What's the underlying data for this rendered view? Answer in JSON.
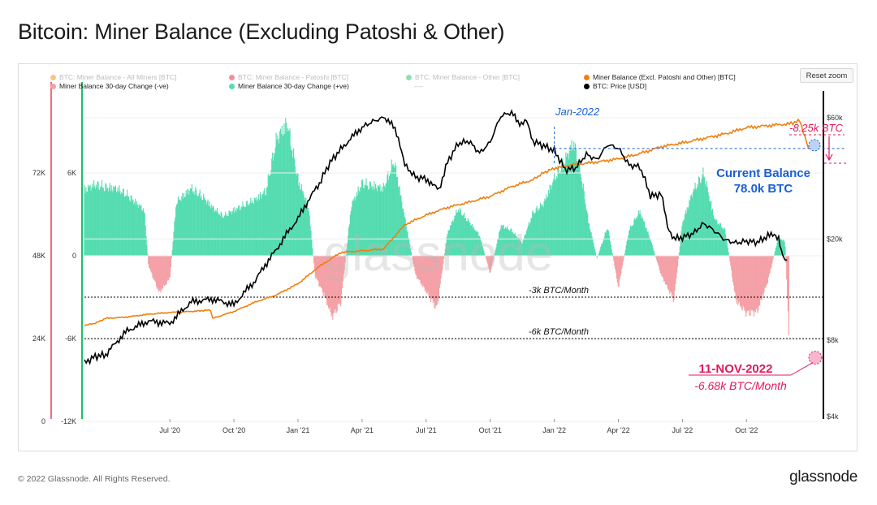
{
  "title": "Bitcoin: Miner Balance (Excluding Patoshi & Other)",
  "reset_zoom": "Reset zoom",
  "footer": {
    "copyright": "© 2022 Glassnode. All Rights Reserved.",
    "logo": "glassnode"
  },
  "watermark": "glassnode",
  "legend": [
    {
      "label": "BTC: Miner Balance - All Miners [BTC]",
      "color": "#f7931a",
      "enabled": false
    },
    {
      "label": "BTC: Miner Balance - Patoshi [BTC]",
      "color": "#e8334a",
      "enabled": false
    },
    {
      "label": "BTC: Miner Balance - Other [BTC]",
      "color": "#2ecc71",
      "enabled": false
    },
    {
      "label": "Miner Balance (Excl. Patoshi and Other) [BTC]",
      "color": "#f07f0f",
      "enabled": true
    },
    {
      "label": "Miner Balance 30-day Change (-ve)",
      "color": "#f4a0a6",
      "enabled": true
    },
    {
      "label": "Miner Balance 30-day Change (+ve)",
      "color": "#55dcb0",
      "enabled": true
    },
    {
      "label": "----",
      "color": "#cccccc",
      "enabled": false
    },
    {
      "label": "BTC: Price [USD]",
      "color": "#000000",
      "enabled": true
    }
  ],
  "colors": {
    "balance": "#f07f0f",
    "price": "#000000",
    "pos_change": "#55dcb0",
    "neg_change": "#f4a0a6",
    "annot_blue": "#1a5fd6",
    "annot_pink": "#e0195a",
    "left_green": "#19c16a",
    "left_red": "#ef6f7c"
  },
  "annotations": {
    "jan2022": "Jan-2022",
    "current_balance_l1": "Current Balance",
    "current_balance_l2": "78.0k BTC",
    "drop": "-8.25k BTC",
    "date": "11-NOV-2022",
    "rate": "-6.68k BTC/Month",
    "line3k": "-3k BTC/Month",
    "line6k": "-6k BTC/Month"
  },
  "chart_data": {
    "type": "line",
    "title": "Bitcoin: Miner Balance (Excluding Patoshi & Other)",
    "x_tick_labels": [
      "Jul '20",
      "Oct '20",
      "Jan '21",
      "Apr '21",
      "Jul '21",
      "Oct '21",
      "Jan '22",
      "Apr '22",
      "Jul '22",
      "Oct '22"
    ],
    "x_tick_months": [
      4,
      7,
      10,
      13,
      16,
      19,
      22,
      25,
      28,
      31
    ],
    "x_range_months": [
      0,
      34.6
    ],
    "x_origin": "2020-03-01",
    "left_axis_balance": {
      "ticks": [
        "72K",
        "48K",
        "24K",
        "0"
      ],
      "values": [
        72000,
        48000,
        24000,
        0
      ],
      "range": [
        0,
        96000
      ]
    },
    "left_axis_change": {
      "ticks": [
        "6K",
        "0",
        "-6K",
        "-12K"
      ],
      "values": [
        6000,
        0,
        -6000,
        -12000
      ],
      "range": [
        -12000,
        12000
      ]
    },
    "right_axis_price": {
      "ticks": [
        "$60k",
        "$20k",
        "$8k",
        "$4k"
      ],
      "values": [
        60000,
        20000,
        8000,
        4000
      ],
      "scale": "log"
    },
    "reference_lines": [
      {
        "value": -3000,
        "label": "-3k BTC/Month"
      },
      {
        "value": -6000,
        "label": "-6k BTC/Month"
      }
    ],
    "series": [
      {
        "name": "Miner Balance (Excl. Patoshi and Other) [BTC]",
        "axis": "left_balance",
        "points": [
          [
            0,
            27000
          ],
          [
            0.5,
            27600
          ],
          [
            1,
            29000
          ],
          [
            2,
            29400
          ],
          [
            3,
            30200
          ],
          [
            4,
            30700
          ],
          [
            5,
            31000
          ],
          [
            5.9,
            31400
          ],
          [
            6,
            29000
          ],
          [
            7,
            31000
          ],
          [
            8,
            33700
          ],
          [
            9,
            35800
          ],
          [
            10,
            39000
          ],
          [
            11,
            44000
          ],
          [
            12,
            48000
          ],
          [
            13,
            48500
          ],
          [
            14,
            49000
          ],
          [
            15,
            56000
          ],
          [
            16,
            58800
          ],
          [
            17,
            61000
          ],
          [
            18,
            62500
          ],
          [
            19,
            64200
          ],
          [
            20,
            67000
          ],
          [
            21,
            69000
          ],
          [
            21.5,
            71000
          ],
          [
            22,
            72300
          ],
          [
            23,
            73400
          ],
          [
            24,
            74100
          ],
          [
            25,
            75000
          ],
          [
            26,
            76500
          ],
          [
            27,
            78500
          ],
          [
            28,
            79600
          ],
          [
            29,
            80900
          ],
          [
            30,
            82200
          ],
          [
            31,
            84000
          ],
          [
            32,
            84600
          ],
          [
            33,
            85100
          ],
          [
            33.5,
            86000
          ],
          [
            33.9,
            78000
          ]
        ]
      },
      {
        "name": "BTC: Price [USD]",
        "axis": "right_price",
        "points": [
          [
            0,
            6500
          ],
          [
            0.5,
            6900
          ],
          [
            1,
            7000
          ],
          [
            2,
            8700
          ],
          [
            3,
            9500
          ],
          [
            4,
            9300
          ],
          [
            5,
            11300
          ],
          [
            6,
            11600
          ],
          [
            7,
            11000
          ],
          [
            8,
            13700
          ],
          [
            9,
            18200
          ],
          [
            10,
            24000
          ],
          [
            11,
            33000
          ],
          [
            11.5,
            40000
          ],
          [
            12,
            45000
          ],
          [
            13,
            55000
          ],
          [
            13.5,
            58000
          ],
          [
            14,
            60000
          ],
          [
            14.3,
            58500
          ],
          [
            14.7,
            50000
          ],
          [
            15,
            39000
          ],
          [
            15.5,
            35000
          ],
          [
            16,
            34500
          ],
          [
            16.6,
            31000
          ],
          [
            17,
            40000
          ],
          [
            17.5,
            47500
          ],
          [
            18,
            48500
          ],
          [
            18.5,
            43500
          ],
          [
            19,
            48000
          ],
          [
            19.5,
            61000
          ],
          [
            20,
            63000
          ],
          [
            20.3,
            57000
          ],
          [
            20.7,
            58000
          ],
          [
            21,
            48500
          ],
          [
            21.5,
            46500
          ],
          [
            22,
            44500
          ],
          [
            22.5,
            37500
          ],
          [
            23,
            38000
          ],
          [
            23.5,
            43000
          ],
          [
            24,
            41000
          ],
          [
            24.5,
            47000
          ],
          [
            25,
            45500
          ],
          [
            25.5,
            39000
          ],
          [
            26,
            38500
          ],
          [
            26.5,
            29500
          ],
          [
            27,
            30000
          ],
          [
            27.3,
            22500
          ],
          [
            27.6,
            20000
          ],
          [
            28,
            20300
          ],
          [
            28.5,
            21000
          ],
          [
            29,
            23000
          ],
          [
            29.5,
            21500
          ],
          [
            30,
            19800
          ],
          [
            30.5,
            19300
          ],
          [
            31,
            19600
          ],
          [
            31.5,
            19400
          ],
          [
            32,
            20500
          ],
          [
            32.3,
            20800
          ],
          [
            32.5,
            20000
          ],
          [
            32.7,
            16900
          ],
          [
            32.9,
            16500
          ]
        ]
      },
      {
        "name": "Miner Balance 30-day Change (+ve/-ve)",
        "axis": "left_change",
        "points": [
          [
            0,
            5200
          ],
          [
            0.5,
            5600
          ],
          [
            1,
            5400
          ],
          [
            1.5,
            5300
          ],
          [
            2,
            4800
          ],
          [
            2.8,
            3600
          ],
          [
            3,
            -800
          ],
          [
            3.5,
            -2900
          ],
          [
            4,
            -1800
          ],
          [
            4.3,
            4200
          ],
          [
            5,
            5300
          ],
          [
            5.5,
            4700
          ],
          [
            6,
            3800
          ],
          [
            6.5,
            3100
          ],
          [
            7,
            3600
          ],
          [
            8,
            4400
          ],
          [
            8.5,
            5100
          ],
          [
            9,
            9200
          ],
          [
            9.5,
            10400
          ],
          [
            10,
            6000
          ],
          [
            10.5,
            3800
          ],
          [
            10.8,
            -1600
          ],
          [
            11.2,
            -3000
          ],
          [
            11.6,
            -4800
          ],
          [
            12,
            -3700
          ],
          [
            12.5,
            4000
          ],
          [
            13,
            5700
          ],
          [
            13.5,
            5500
          ],
          [
            14,
            5300
          ],
          [
            14.5,
            7500
          ],
          [
            15,
            3000
          ],
          [
            15.5,
            -1500
          ],
          [
            16,
            -2800
          ],
          [
            16.5,
            -4200
          ],
          [
            17,
            1800
          ],
          [
            17.5,
            3700
          ],
          [
            18,
            2700
          ],
          [
            18.5,
            1600
          ],
          [
            19,
            -1400
          ],
          [
            19.5,
            2400
          ],
          [
            20,
            2000
          ],
          [
            20.5,
            1000
          ],
          [
            21,
            3400
          ],
          [
            21.5,
            4100
          ],
          [
            22,
            6100
          ],
          [
            22.5,
            7500
          ],
          [
            22.9,
            8900
          ],
          [
            23.2,
            7000
          ],
          [
            23.6,
            2700
          ],
          [
            24,
            -200
          ],
          [
            24.5,
            2300
          ],
          [
            25,
            -2500
          ],
          [
            25.5,
            2000
          ],
          [
            26,
            3500
          ],
          [
            26.5,
            1300
          ],
          [
            27,
            -1500
          ],
          [
            27.6,
            -3500
          ],
          [
            28,
            2600
          ],
          [
            28.5,
            5100
          ],
          [
            29,
            6500
          ],
          [
            29.5,
            2900
          ],
          [
            30,
            2000
          ],
          [
            30.5,
            -3500
          ],
          [
            31,
            -4500
          ],
          [
            31.5,
            -4400
          ],
          [
            32,
            -2000
          ],
          [
            32.5,
            1500
          ],
          [
            32.8,
            1100
          ],
          [
            33,
            -6680
          ]
        ]
      }
    ],
    "annotations": [
      {
        "label": "Jan-2022",
        "x_month": 22
      },
      {
        "label": "Current Balance 78.0k BTC",
        "value": 78000
      },
      {
        "label": "-8.25k BTC",
        "value": -8250
      },
      {
        "label": "11-NOV-2022 -6.68k BTC/Month",
        "value": -6680
      }
    ]
  }
}
